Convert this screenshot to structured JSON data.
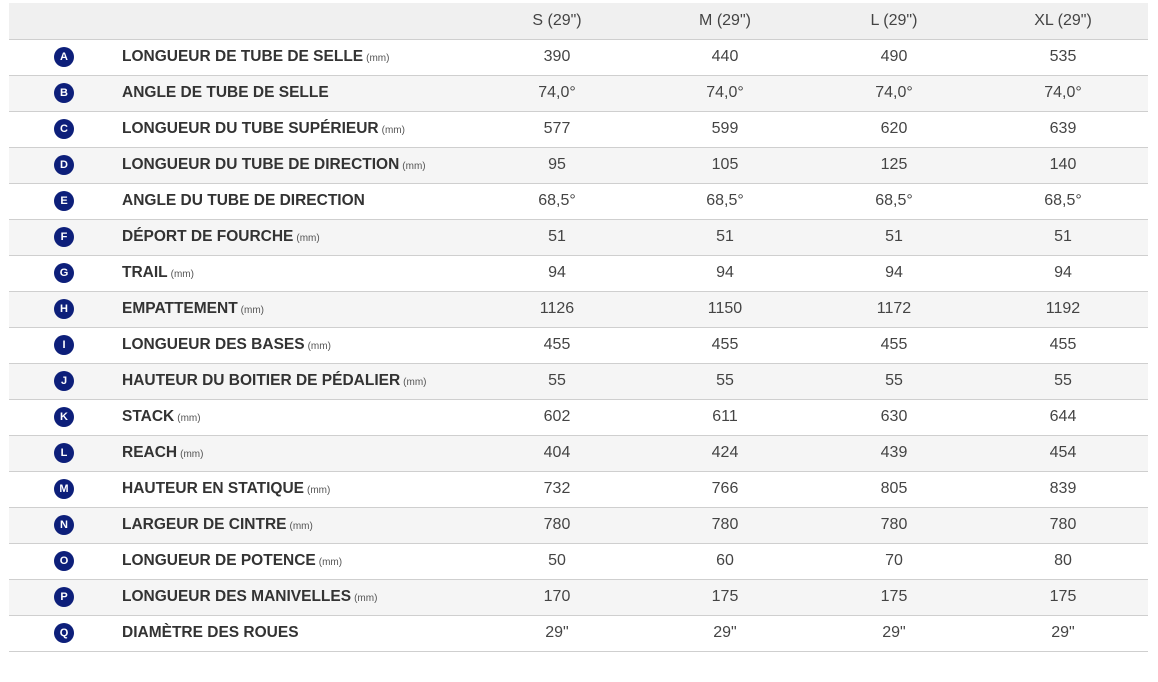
{
  "table": {
    "headers": [
      "S (29\")",
      "M (29\")",
      "L (29\")",
      "XL (29\")"
    ],
    "rows": [
      {
        "letter": "A",
        "name": "LONGUEUR DE TUBE DE SELLE",
        "unit": "(mm)",
        "values": [
          "390",
          "440",
          "490",
          "535"
        ]
      },
      {
        "letter": "B",
        "name": "ANGLE DE TUBE DE SELLE",
        "unit": "",
        "values": [
          "74,0°",
          "74,0°",
          "74,0°",
          "74,0°"
        ]
      },
      {
        "letter": "C",
        "name": "LONGUEUR DU TUBE SUPÉRIEUR",
        "unit": "(mm)",
        "values": [
          "577",
          "599",
          "620",
          "639"
        ]
      },
      {
        "letter": "D",
        "name": "LONGUEUR DU TUBE DE DIRECTION",
        "unit": "(mm)",
        "values": [
          "95",
          "105",
          "125",
          "140"
        ]
      },
      {
        "letter": "E",
        "name": "ANGLE DU TUBE DE DIRECTION",
        "unit": "",
        "values": [
          "68,5°",
          "68,5°",
          "68,5°",
          "68,5°"
        ]
      },
      {
        "letter": "F",
        "name": "DÉPORT DE FOURCHE",
        "unit": "(mm)",
        "values": [
          "51",
          "51",
          "51",
          "51"
        ]
      },
      {
        "letter": "G",
        "name": "TRAIL",
        "unit": "(mm)",
        "values": [
          "94",
          "94",
          "94",
          "94"
        ]
      },
      {
        "letter": "H",
        "name": "EMPATTEMENT",
        "unit": "(mm)",
        "values": [
          "1126",
          "1150",
          "1172",
          "1192"
        ]
      },
      {
        "letter": "I",
        "name": "LONGUEUR DES BASES",
        "unit": "(mm)",
        "values": [
          "455",
          "455",
          "455",
          "455"
        ]
      },
      {
        "letter": "J",
        "name": "HAUTEUR DU BOITIER DE PÉDALIER",
        "unit": "(mm)",
        "values": [
          "55",
          "55",
          "55",
          "55"
        ]
      },
      {
        "letter": "K",
        "name": "STACK",
        "unit": "(mm)",
        "values": [
          "602",
          "611",
          "630",
          "644"
        ]
      },
      {
        "letter": "L",
        "name": "REACH",
        "unit": "(mm)",
        "values": [
          "404",
          "424",
          "439",
          "454"
        ]
      },
      {
        "letter": "M",
        "name": "HAUTEUR EN STATIQUE",
        "unit": "(mm)",
        "values": [
          "732",
          "766",
          "805",
          "839"
        ]
      },
      {
        "letter": "N",
        "name": "LARGEUR DE CINTRE",
        "unit": "(mm)",
        "values": [
          "780",
          "780",
          "780",
          "780"
        ]
      },
      {
        "letter": "O",
        "name": "LONGUEUR DE POTENCE",
        "unit": "(mm)",
        "values": [
          "50",
          "60",
          "70",
          "80"
        ]
      },
      {
        "letter": "P",
        "name": "LONGUEUR DES MANIVELLES",
        "unit": "(mm)",
        "values": [
          "170",
          "175",
          "175",
          "175"
        ]
      },
      {
        "letter": "Q",
        "name": "DIAMÈTRE DES ROUES",
        "unit": "",
        "values": [
          "29\"",
          "29\"",
          "29\"",
          "29\""
        ]
      }
    ]
  },
  "colors": {
    "badge_bg": "#0d1f7a",
    "header_bg": "#f0f0f0",
    "stripe_bg": "#f5f5f5"
  }
}
